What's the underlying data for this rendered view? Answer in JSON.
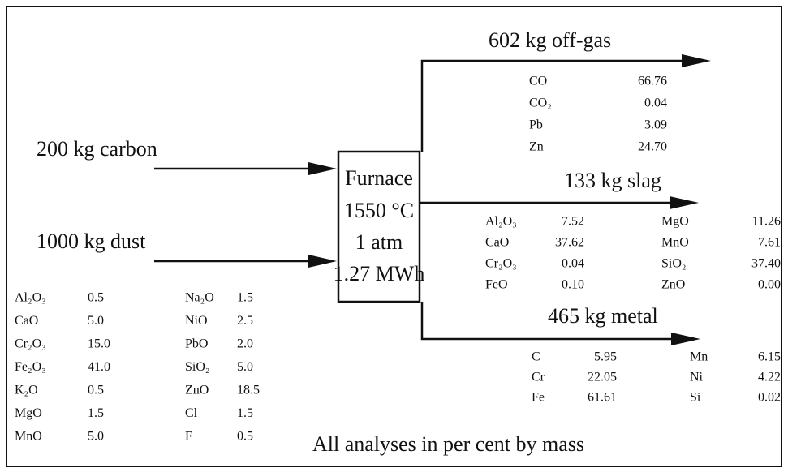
{
  "inputs": [
    {
      "label": "200 kg carbon"
    },
    {
      "label": "1000 kg dust"
    }
  ],
  "dust_analysis": {
    "columns": [
      [
        [
          "Al₂O₃",
          "0.5"
        ],
        [
          "CaO",
          "5.0"
        ],
        [
          "Cr₂O₃",
          "15.0"
        ],
        [
          "Fe₂O₃",
          "41.0"
        ],
        [
          "K₂O",
          "0.5"
        ],
        [
          "MgO",
          "1.5"
        ],
        [
          "MnO",
          "5.0"
        ]
      ],
      [
        [
          "Na₂O",
          "1.5"
        ],
        [
          "NiO",
          "2.5"
        ],
        [
          "PbO",
          "2.0"
        ],
        [
          "SiO₂",
          "5.0"
        ],
        [
          "ZnO",
          "18.5"
        ],
        [
          "Cl",
          "1.5"
        ],
        [
          "F",
          "0.5"
        ]
      ]
    ]
  },
  "furnace": {
    "lines": [
      "Furnace",
      "1550 °C",
      "1 atm",
      "1.27 MWh"
    ]
  },
  "outputs": [
    {
      "label": "602 kg off-gas",
      "columns": [
        [
          [
            "CO",
            "66.76"
          ],
          [
            "CO₂",
            "0.04"
          ],
          [
            "Pb",
            "3.09"
          ],
          [
            "Zn",
            "24.70"
          ]
        ]
      ]
    },
    {
      "label": "133 kg slag",
      "columns": [
        [
          [
            "Al₂O₃",
            "7.52"
          ],
          [
            "CaO",
            "37.62"
          ],
          [
            "Cr₂O₃",
            "0.04"
          ],
          [
            "FeO",
            "0.10"
          ]
        ],
        [
          [
            "MgO",
            "11.26"
          ],
          [
            "MnO",
            "7.61"
          ],
          [
            "SiO₂",
            "37.40"
          ],
          [
            "ZnO",
            "0.00"
          ]
        ]
      ]
    },
    {
      "label": "465 kg metal",
      "columns": [
        [
          [
            "C",
            "5.95"
          ],
          [
            "Cr",
            "22.05"
          ],
          [
            "Fe",
            "61.61"
          ]
        ],
        [
          [
            "Mn",
            "6.15"
          ],
          [
            "Ni",
            "4.22"
          ],
          [
            "Si",
            "0.02"
          ]
        ]
      ]
    }
  ],
  "note": "All analyses in per cent by mass"
}
